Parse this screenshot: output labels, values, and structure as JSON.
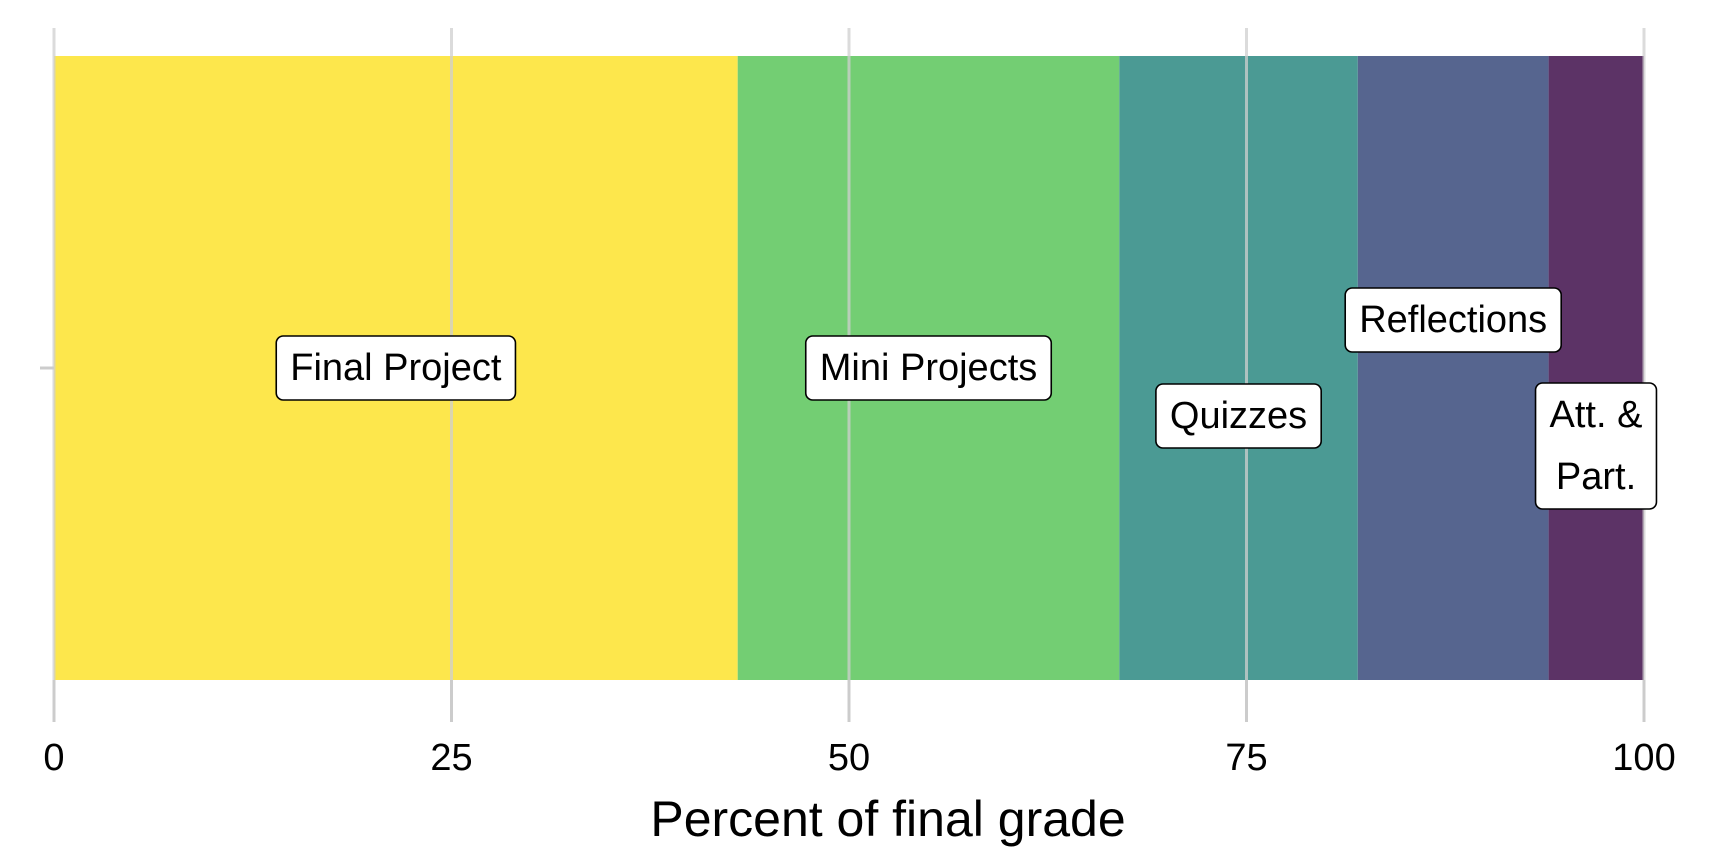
{
  "chart_data": {
    "type": "bar",
    "orientation": "horizontal-stacked",
    "xlabel": "Percent of final grade",
    "ylabel": "",
    "xlim": [
      0,
      100
    ],
    "xticks": [
      "0",
      "25",
      "50",
      "75",
      "100"
    ],
    "grid": "vertical",
    "segments": [
      {
        "name": "Final Project",
        "lines": [
          "Final Project"
        ],
        "value": 43,
        "color": "#FDE74C"
      },
      {
        "name": "Mini Projects",
        "lines": [
          "Mini Projects"
        ],
        "value": 24,
        "color": "#73CE73"
      },
      {
        "name": "Quizzes",
        "lines": [
          "Quizzes"
        ],
        "value": 15,
        "color": "#4B9A94"
      },
      {
        "name": "Reflections",
        "lines": [
          "Reflections"
        ],
        "value": 12,
        "color": "#56658F"
      },
      {
        "name": "Att. & Part.",
        "lines": [
          "Att. &",
          "Part."
        ],
        "value": 6,
        "color": "#5C3366"
      }
    ]
  }
}
